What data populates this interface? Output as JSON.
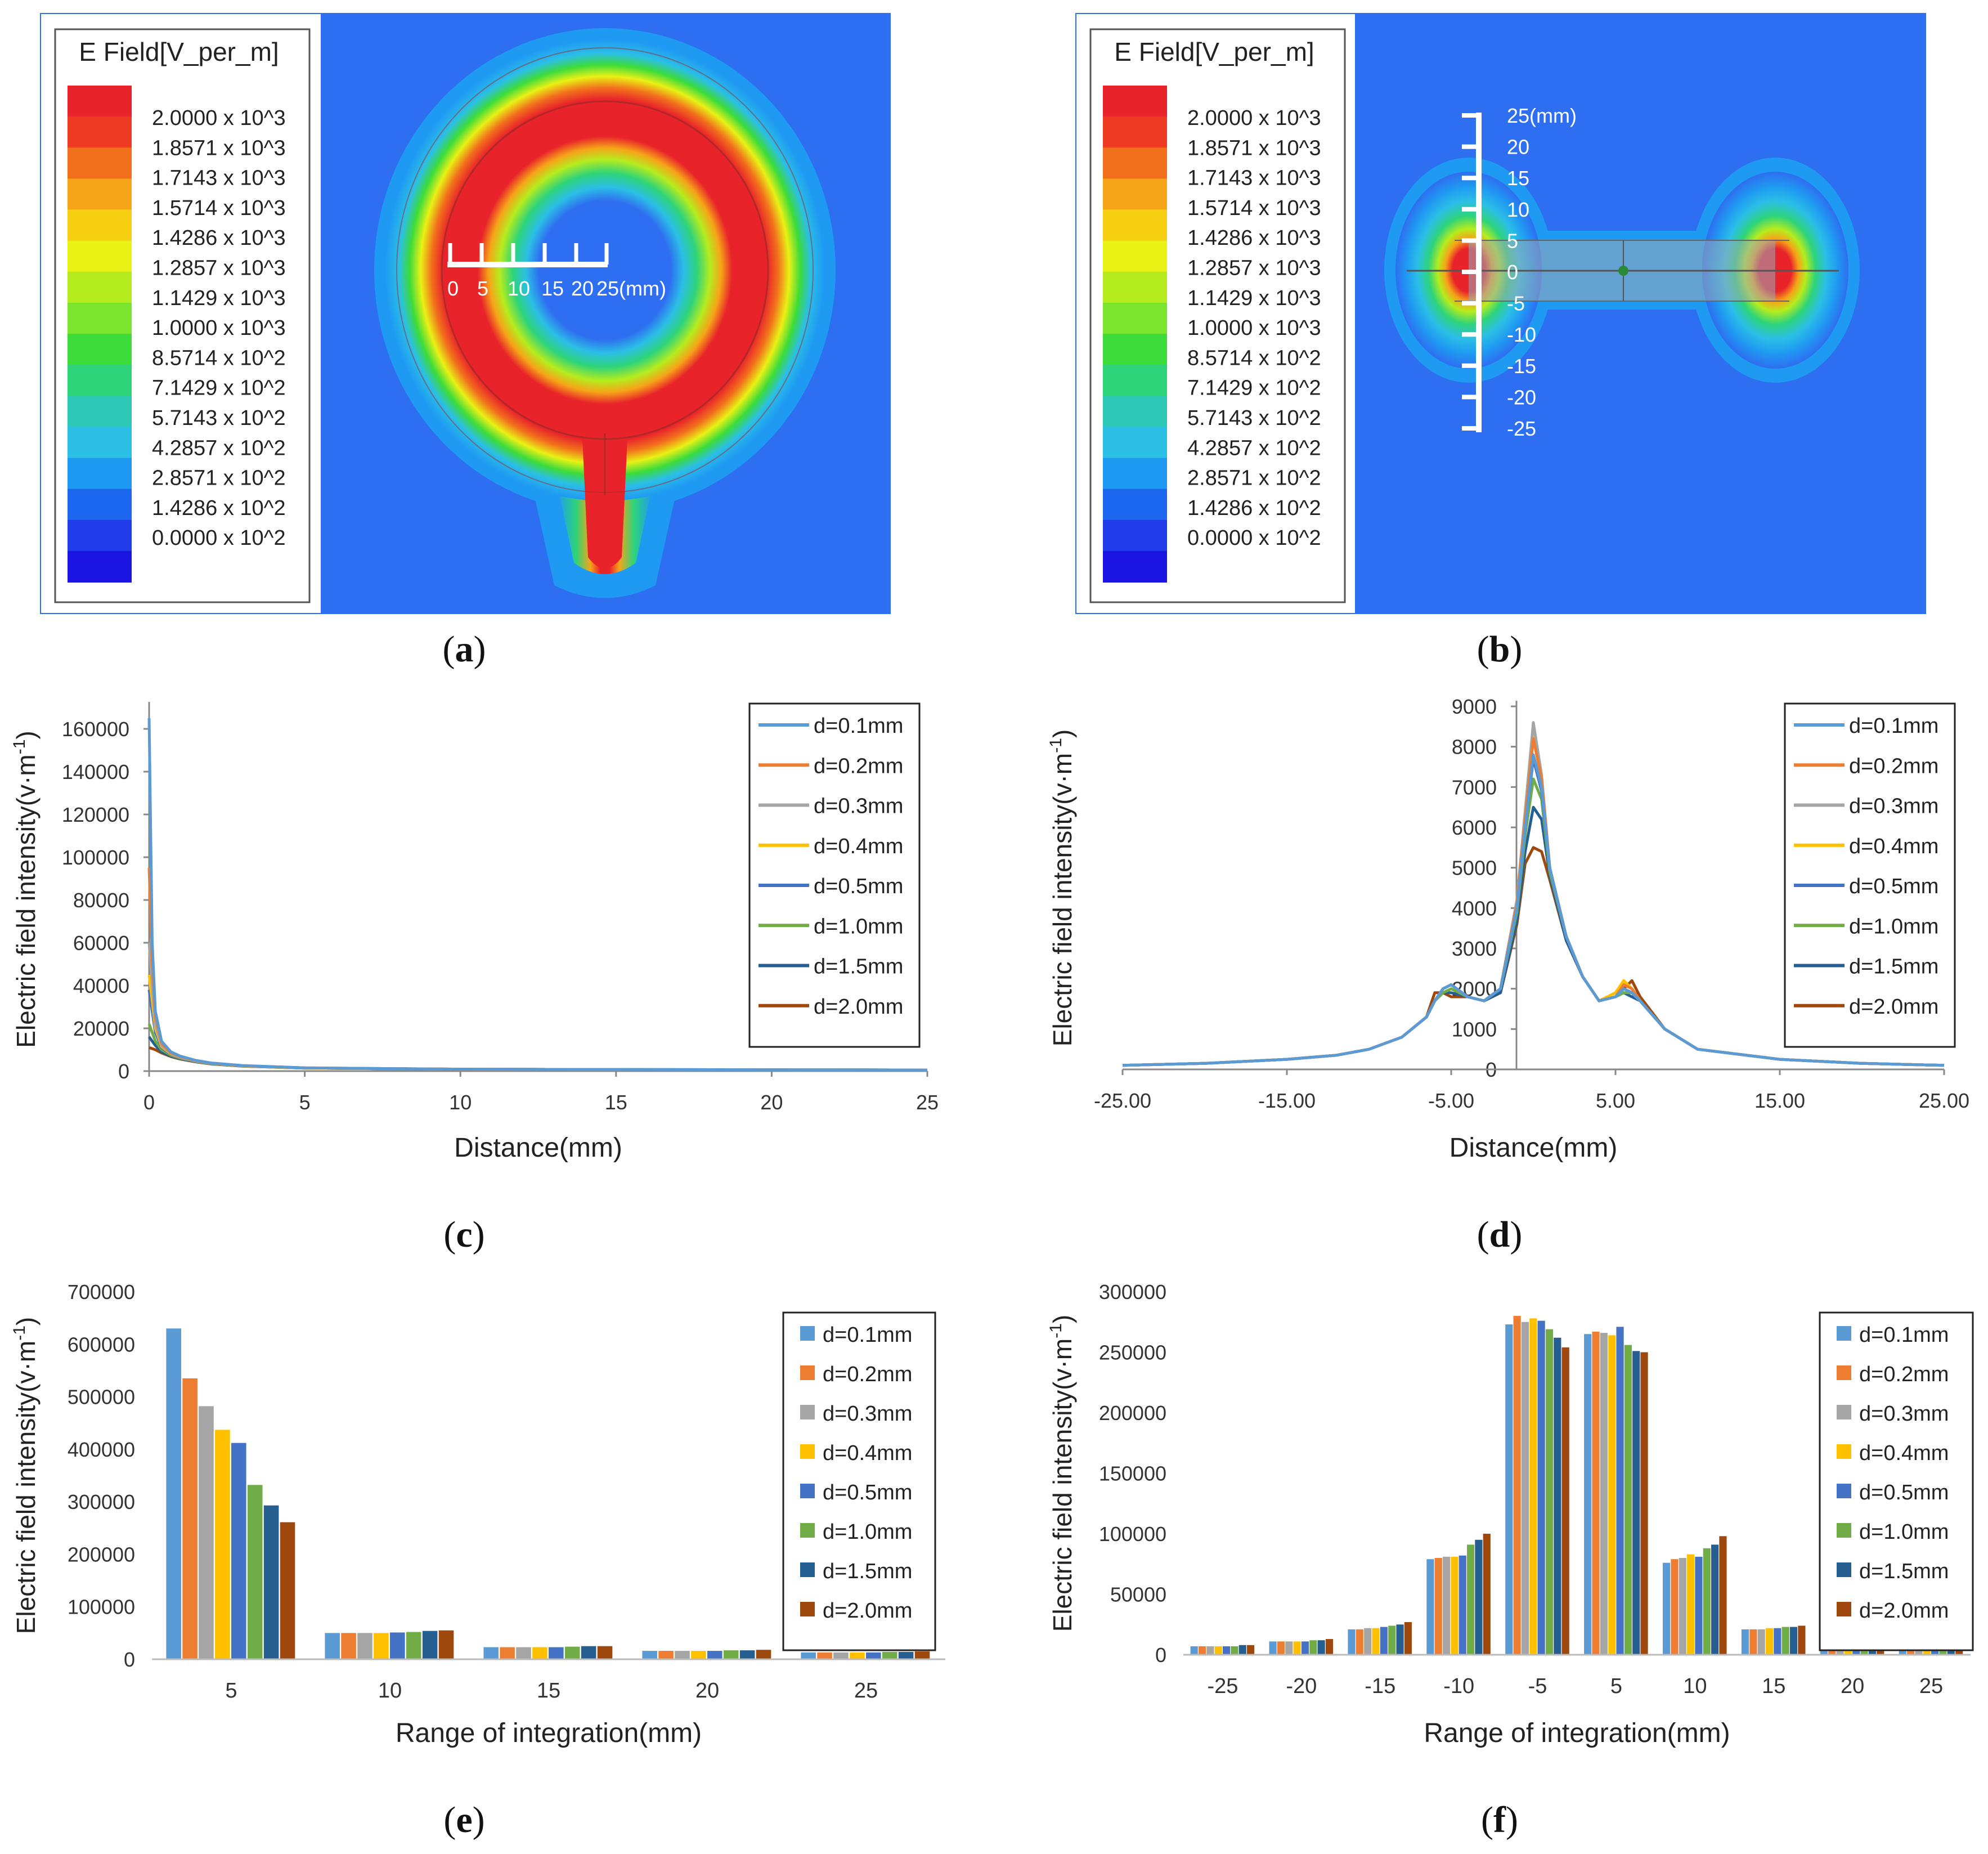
{
  "colors": {
    "field_bg": "#2e6ef0",
    "legend_scale": [
      "#e8242a",
      "#ef3b24",
      "#f2701c",
      "#f6a418",
      "#f7cf12",
      "#e9f115",
      "#b5ec1e",
      "#7be42c",
      "#3ddc3a",
      "#2ed47a",
      "#2ec9b6",
      "#2bbfe6",
      "#1f9af2",
      "#1c67f0",
      "#1f3bea",
      "#1a14e0"
    ],
    "series": [
      "#5b9bd5",
      "#ed7d31",
      "#a5a5a5",
      "#ffc000",
      "#4472c4",
      "#70ad47",
      "#255e91",
      "#9e480e"
    ]
  },
  "panels": {
    "a": {
      "label_open": "(",
      "label_letter": "a",
      "label_close": ")",
      "legend_title": "E Field[V_per_m]",
      "legend_values": [
        "2.0000 x 10^3",
        "1.8571 x 10^3",
        "1.7143 x 10^3",
        "1.5714 x 10^3",
        "1.4286 x 10^3",
        "1.2857 x 10^3",
        "1.1429 x 10^3",
        "1.0000 x 10^3",
        "8.5714 x 10^2",
        "7.1429 x 10^2",
        "5.7143 x 10^2",
        "4.2857 x 10^2",
        "2.8571 x 10^2",
        "1.4286 x 10^2",
        "0.0000 x 10^2"
      ],
      "scale_labels": [
        "0",
        "5",
        "10",
        "15",
        "20",
        "25(mm)"
      ]
    },
    "b": {
      "label_open": "(",
      "label_letter": "b",
      "label_close": ")",
      "legend_title": "E Field[V_per_m]",
      "legend_values": [
        "2.0000 x 10^3",
        "1.8571 x 10^3",
        "1.7143 x 10^3",
        "1.5714 x 10^3",
        "1.4286 x 10^3",
        "1.2857 x 10^3",
        "1.1429 x 10^3",
        "1.0000 x 10^3",
        "8.5714 x 10^2",
        "7.1429 x 10^2",
        "5.7143 x 10^2",
        "4.2857 x 10^2",
        "2.8571 x 10^2",
        "1.4286 x 10^2",
        "0.0000 x 10^2"
      ],
      "scale_labels": [
        "25(mm)",
        "20",
        "15",
        "10",
        "5",
        "0",
        "-5",
        "-10",
        "-15",
        "-20",
        "-25"
      ]
    },
    "c": {
      "label_open": "(",
      "label_letter": "c",
      "label_close": ")"
    },
    "d": {
      "label_open": "(",
      "label_letter": "d",
      "label_close": ")"
    },
    "e": {
      "label_open": "(",
      "label_letter": "e",
      "label_close": ")"
    },
    "f": {
      "label_open": "(",
      "label_letter": "f",
      "label_close": ")"
    }
  },
  "chart_data": [
    {
      "id": "c",
      "type": "line",
      "title": "",
      "xlabel": "Distance(mm)",
      "ylabel_main": "Electric field intensity(v·m",
      "ylabel_sup": "-1",
      "ylabel_close": ")",
      "xlim": [
        0,
        25
      ],
      "ylim": [
        0,
        170000
      ],
      "xticks": [
        0,
        5,
        10,
        15,
        20,
        25
      ],
      "xtick_labels": [
        "0",
        "5",
        "10",
        "15",
        "20",
        "25"
      ],
      "yticks": [
        0,
        20000,
        40000,
        60000,
        80000,
        100000,
        120000,
        140000,
        160000
      ],
      "ytick_labels": [
        "0",
        "20000",
        "40000",
        "60000",
        "80000",
        "100000",
        "120000",
        "140000",
        "160000"
      ],
      "legend": [
        "d=0.1mm",
        "d=0.2mm",
        "d=0.3mm",
        "d=0.4mm",
        "d=0.5mm",
        "d=1.0mm",
        "d=1.5mm",
        "d=2.0mm"
      ],
      "x": [
        0,
        0.1,
        0.2,
        0.4,
        0.7,
        1,
        1.5,
        2,
        3,
        5,
        10,
        15,
        20,
        25
      ],
      "series": [
        {
          "name": "d=0.1mm",
          "values": [
            165000,
            60000,
            28000,
            14000,
            9000,
            7000,
            5000,
            3800,
            2600,
            1500,
            900,
            700,
            600,
            500
          ]
        },
        {
          "name": "d=0.2mm",
          "values": [
            95000,
            50000,
            26000,
            13000,
            8500,
            6800,
            4900,
            3700,
            2500,
            1500,
            900,
            700,
            600,
            500
          ]
        },
        {
          "name": "d=0.3mm",
          "values": [
            60000,
            40000,
            22000,
            12000,
            8200,
            6500,
            4800,
            3600,
            2500,
            1500,
            900,
            700,
            600,
            500
          ]
        },
        {
          "name": "d=0.4mm",
          "values": [
            45000,
            33000,
            20000,
            11500,
            8000,
            6400,
            4700,
            3600,
            2400,
            1400,
            900,
            700,
            600,
            500
          ]
        },
        {
          "name": "d=0.5mm",
          "values": [
            38000,
            28000,
            18000,
            11000,
            7800,
            6200,
            4600,
            3500,
            2400,
            1400,
            900,
            700,
            600,
            500
          ]
        },
        {
          "name": "d=1.0mm",
          "values": [
            22000,
            18000,
            14000,
            10000,
            7400,
            6000,
            4500,
            3400,
            2400,
            1400,
            900,
            700,
            600,
            500
          ]
        },
        {
          "name": "d=1.5mm",
          "values": [
            16000,
            14000,
            12000,
            9000,
            7000,
            5800,
            4400,
            3400,
            2300,
            1400,
            900,
            700,
            600,
            500
          ]
        },
        {
          "name": "d=2.0mm",
          "values": [
            11000,
            10500,
            10000,
            8500,
            6800,
            5600,
            4300,
            3300,
            2300,
            1400,
            900,
            700,
            600,
            500
          ]
        }
      ]
    },
    {
      "id": "d",
      "type": "line",
      "title": "",
      "xlabel": "Distance(mm)",
      "ylabel_main": "Electric field intensity(v·m",
      "ylabel_sup": "-1",
      "ylabel_close": ")",
      "xlim": [
        -25,
        25
      ],
      "ylim": [
        0,
        9000
      ],
      "xticks": [
        -25,
        -15,
        -5,
        5,
        15,
        25
      ],
      "xtick_labels": [
        "-25.00",
        "-15.00",
        "-5.00",
        "5.00",
        "15.00",
        "25.00"
      ],
      "yticks": [
        0,
        1000,
        2000,
        3000,
        4000,
        5000,
        6000,
        7000,
        8000,
        9000
      ],
      "ytick_labels": [
        "0",
        "1000",
        "2000",
        "3000",
        "4000",
        "5000",
        "6000",
        "7000",
        "8000",
        "9000"
      ],
      "legend": [
        "d=0.1mm",
        "d=0.2mm",
        "d=0.3mm",
        "d=0.4mm",
        "d=0.5mm",
        "d=1.0mm",
        "d=1.5mm",
        "d=2.0mm"
      ],
      "x": [
        -25,
        -20,
        -15,
        -12,
        -10,
        -8,
        -6.5,
        -6,
        -5.5,
        -5,
        -4,
        -3,
        -2,
        -1,
        -0.5,
        0,
        0.5,
        1,
        2,
        3,
        4,
        5,
        5.5,
        6,
        6.5,
        8,
        10,
        15,
        20,
        25
      ],
      "series": [
        {
          "name": "d=0.1mm",
          "values": [
            100,
            150,
            250,
            350,
            500,
            800,
            1300,
            1700,
            2000,
            2100,
            1800,
            1700,
            2000,
            4000,
            6000,
            7800,
            7000,
            5000,
            3300,
            2300,
            1700,
            1800,
            2000,
            1900,
            1700,
            1000,
            500,
            250,
            150,
            100
          ]
        },
        {
          "name": "d=0.2mm",
          "values": [
            100,
            150,
            250,
            350,
            500,
            800,
            1300,
            1700,
            2000,
            2100,
            1800,
            1700,
            2000,
            4100,
            6200,
            8200,
            7200,
            5000,
            3300,
            2300,
            1700,
            1800,
            2100,
            2000,
            1700,
            1000,
            500,
            250,
            150,
            100
          ]
        },
        {
          "name": "d=0.3mm",
          "values": [
            100,
            150,
            250,
            350,
            500,
            800,
            1300,
            1700,
            2000,
            2100,
            1800,
            1700,
            2000,
            4200,
            6400,
            8600,
            7300,
            5000,
            3300,
            2300,
            1700,
            1800,
            2000,
            1900,
            1700,
            1000,
            500,
            250,
            150,
            100
          ]
        },
        {
          "name": "d=0.4mm",
          "values": [
            100,
            150,
            250,
            350,
            500,
            800,
            1300,
            1700,
            2000,
            2100,
            1800,
            1700,
            2000,
            4100,
            6300,
            8400,
            7200,
            5000,
            3300,
            2300,
            1700,
            1900,
            2200,
            2000,
            1700,
            1000,
            500,
            250,
            150,
            100
          ]
        },
        {
          "name": "d=0.5mm",
          "values": [
            100,
            150,
            250,
            350,
            500,
            800,
            1300,
            1700,
            2000,
            2100,
            1800,
            1700,
            2000,
            4000,
            6000,
            7700,
            6900,
            5000,
            3300,
            2300,
            1700,
            1800,
            2000,
            1900,
            1700,
            1000,
            500,
            250,
            150,
            100
          ]
        },
        {
          "name": "d=1.0mm",
          "values": [
            100,
            150,
            250,
            350,
            500,
            800,
            1300,
            1700,
            1900,
            2000,
            1800,
            1700,
            2000,
            3900,
            5800,
            7200,
            6700,
            4900,
            3300,
            2300,
            1700,
            1800,
            1900,
            1900,
            1700,
            1000,
            500,
            250,
            150,
            100
          ]
        },
        {
          "name": "d=1.5mm",
          "values": [
            100,
            150,
            250,
            350,
            500,
            800,
            1300,
            1700,
            1900,
            1900,
            1800,
            1700,
            1900,
            3700,
            5400,
            6500,
            6200,
            4800,
            3200,
            2300,
            1700,
            1800,
            1900,
            1800,
            1700,
            1000,
            500,
            250,
            150,
            100
          ]
        },
        {
          "name": "d=2.0mm",
          "values": [
            100,
            150,
            250,
            350,
            500,
            800,
            1300,
            1900,
            1900,
            1800,
            1800,
            1700,
            1900,
            3600,
            5100,
            5500,
            5400,
            4700,
            3200,
            2300,
            1700,
            1800,
            2000,
            2200,
            1800,
            1000,
            500,
            250,
            150,
            100
          ]
        }
      ]
    },
    {
      "id": "e",
      "type": "bar",
      "title": "",
      "xlabel": "Range of integration(mm)",
      "ylabel_main": "Electric field intensity(v·m",
      "ylabel_sup": "-1",
      "ylabel_close": ")",
      "ylim": [
        0,
        700000
      ],
      "yticks": [
        0,
        100000,
        200000,
        300000,
        400000,
        500000,
        600000,
        700000
      ],
      "ytick_labels": [
        "0",
        "100000",
        "200000",
        "300000",
        "400000",
        "500000",
        "600000",
        "700000"
      ],
      "categories": [
        "5",
        "10",
        "15",
        "20",
        "25"
      ],
      "legend": [
        "d=0.1mm",
        "d=0.2mm",
        "d=0.3mm",
        "d=0.4mm",
        "d=0.5mm",
        "d=1.0mm",
        "d=1.5mm",
        "d=2.0mm"
      ],
      "series": [
        {
          "name": "d=0.1mm",
          "values": [
            630000,
            50000,
            23000,
            16000,
            13000
          ]
        },
        {
          "name": "d=0.2mm",
          "values": [
            535000,
            50000,
            23000,
            16000,
            13000
          ]
        },
        {
          "name": "d=0.3mm",
          "values": [
            482000,
            50000,
            23000,
            16000,
            13000
          ]
        },
        {
          "name": "d=0.4mm",
          "values": [
            437000,
            50000,
            23000,
            16000,
            13000
          ]
        },
        {
          "name": "d=0.5mm",
          "values": [
            412000,
            51000,
            23000,
            16000,
            13000
          ]
        },
        {
          "name": "d=1.0mm",
          "values": [
            332000,
            52000,
            24000,
            17000,
            14000
          ]
        },
        {
          "name": "d=1.5mm",
          "values": [
            293000,
            54000,
            25000,
            17000,
            14000
          ]
        },
        {
          "name": "d=2.0mm",
          "values": [
            261000,
            55000,
            25000,
            18000,
            15000
          ]
        }
      ]
    },
    {
      "id": "f",
      "type": "bar",
      "title": "",
      "xlabel": "Range of integration(mm)",
      "ylabel_main": "Electric field intensity(v·m",
      "ylabel_sup": "-1",
      "ylabel_close": ")",
      "ylim": [
        0,
        300000
      ],
      "yticks": [
        0,
        50000,
        100000,
        150000,
        200000,
        250000,
        300000
      ],
      "ytick_labels": [
        "0",
        "50000",
        "100000",
        "150000",
        "200000",
        "250000",
        "300000"
      ],
      "categories": [
        "-25",
        "-20",
        "-15",
        "-10",
        "-5",
        "5",
        "10",
        "15",
        "20",
        "25"
      ],
      "legend": [
        "d=0.1mm",
        "d=0.2mm",
        "d=0.3mm",
        "d=0.4mm",
        "d=0.5mm",
        "d=1.0mm",
        "d=1.5mm",
        "d=2.0mm"
      ],
      "series": [
        {
          "name": "d=0.1mm",
          "values": [
            7000,
            11000,
            21000,
            79000,
            273000,
            265000,
            76000,
            21000,
            12000,
            7000
          ]
        },
        {
          "name": "d=0.2mm",
          "values": [
            7000,
            11000,
            21000,
            80000,
            280000,
            267000,
            79000,
            21000,
            12000,
            7000
          ]
        },
        {
          "name": "d=0.3mm",
          "values": [
            7000,
            11000,
            22000,
            81000,
            275000,
            266000,
            80000,
            21000,
            12000,
            7000
          ]
        },
        {
          "name": "d=0.4mm",
          "values": [
            7000,
            11000,
            22000,
            81000,
            278000,
            264000,
            83000,
            22000,
            12000,
            7000
          ]
        },
        {
          "name": "d=0.5mm",
          "values": [
            7000,
            11000,
            23000,
            82000,
            276000,
            271000,
            81000,
            22000,
            13000,
            7000
          ]
        },
        {
          "name": "d=1.0mm",
          "values": [
            7000,
            12000,
            24000,
            91000,
            269000,
            256000,
            88000,
            23000,
            13000,
            7000
          ]
        },
        {
          "name": "d=1.5mm",
          "values": [
            8000,
            12000,
            25000,
            95000,
            262000,
            251000,
            91000,
            23000,
            13000,
            7000
          ]
        },
        {
          "name": "d=2.0mm",
          "values": [
            8000,
            13000,
            27000,
            100000,
            254000,
            250000,
            98000,
            24000,
            13000,
            8000
          ]
        }
      ]
    }
  ]
}
